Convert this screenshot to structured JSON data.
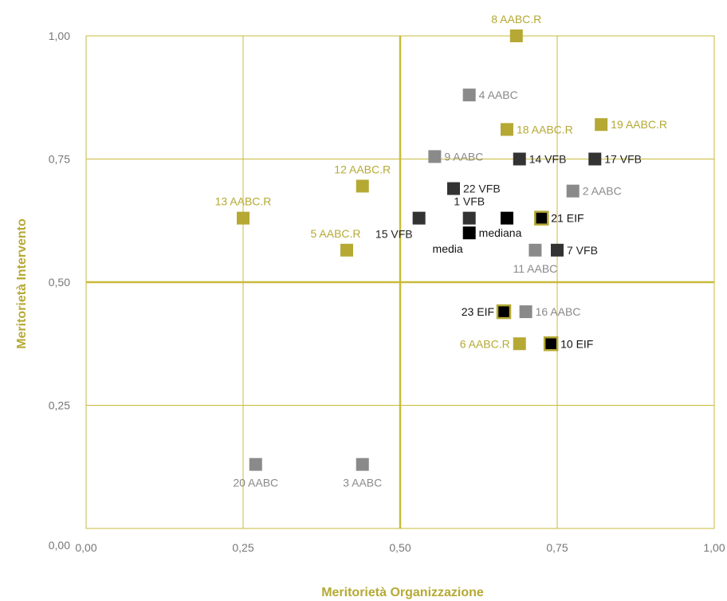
{
  "chart_data": {
    "type": "scatter",
    "xlabel": "Meritorietà Organizzazione",
    "ylabel": "Meritorietà Intervento",
    "xlim": [
      0,
      1
    ],
    "ylim": [
      0,
      1
    ],
    "x_ticks": [
      "0,00",
      "0,25",
      "0,50",
      "0,75",
      "1,00"
    ],
    "y_ticks": [
      "0,00",
      "0,25",
      "0,50",
      "0,75",
      "1,00"
    ],
    "x_tick_values": [
      0,
      0.25,
      0.5,
      0.75,
      1
    ],
    "y_tick_values": [
      0,
      0.25,
      0.5,
      0.75,
      1
    ],
    "grid": true,
    "legend": "none",
    "reference_lines": {
      "x": 0.5,
      "y": 0.5
    },
    "colors": {
      "AABC.R": "#b5a934",
      "AABC": "#8a8a8a",
      "VFB": "#333333",
      "EIF": "#000000",
      "EIF_border": "#b5a934",
      "summary": "#000000",
      "axis_title": "#b5a934",
      "grid": "#c8bb3c"
    },
    "points": [
      {
        "label": "8 AABC.R",
        "group": "AABC.R",
        "x": 0.685,
        "y": 1.0,
        "label_pos": "above"
      },
      {
        "label": "4 AABC",
        "group": "AABC",
        "x": 0.61,
        "y": 0.88,
        "label_pos": "right"
      },
      {
        "label": "19 AABC.R",
        "group": "AABC.R",
        "x": 0.82,
        "y": 0.82,
        "label_pos": "right"
      },
      {
        "label": "18 AABC.R",
        "group": "AABC.R",
        "x": 0.67,
        "y": 0.81,
        "label_pos": "right"
      },
      {
        "label": "9 AABC",
        "group": "AABC",
        "x": 0.555,
        "y": 0.755,
        "label_pos": "right"
      },
      {
        "label": "14 VFB",
        "group": "VFB",
        "x": 0.69,
        "y": 0.75,
        "label_pos": "right"
      },
      {
        "label": "17 VFB",
        "group": "VFB",
        "x": 0.81,
        "y": 0.75,
        "label_pos": "right"
      },
      {
        "label": "12 AABC.R",
        "group": "AABC.R",
        "x": 0.44,
        "y": 0.695,
        "label_pos": "above"
      },
      {
        "label": "22 VFB",
        "group": "VFB",
        "x": 0.585,
        "y": 0.69,
        "label_pos": "right"
      },
      {
        "label": "2 AABC",
        "group": "AABC",
        "x": 0.775,
        "y": 0.685,
        "label_pos": "right"
      },
      {
        "label": "13 AABC.R",
        "group": "AABC.R",
        "x": 0.25,
        "y": 0.63,
        "label_pos": "above"
      },
      {
        "label": "1 VFB",
        "group": "VFB",
        "x": 0.61,
        "y": 0.63,
        "label_pos": "above"
      },
      {
        "label": "15 VFB",
        "group": "VFB",
        "x": 0.53,
        "y": 0.63,
        "label_pos": "below-left"
      },
      {
        "label": "",
        "group": "EIF",
        "x": 0.67,
        "y": 0.63,
        "label_pos": "none"
      },
      {
        "label": "21 EIF",
        "group": "EIF",
        "x": 0.725,
        "y": 0.63,
        "label_pos": "right",
        "bordered": true
      },
      {
        "label": "mediana",
        "group": "summary",
        "x": 0.61,
        "y": 0.6,
        "label_pos": "right"
      },
      {
        "label": "media",
        "group": "summary",
        "x": 0.61,
        "y": 0.6,
        "label_pos": "below-left"
      },
      {
        "label": "5 AABC.R",
        "group": "AABC.R",
        "x": 0.415,
        "y": 0.565,
        "label_pos": "above-left"
      },
      {
        "label": "11 AABC",
        "group": "AABC",
        "x": 0.715,
        "y": 0.565,
        "label_pos": "below"
      },
      {
        "label": "7 VFB",
        "group": "VFB",
        "x": 0.75,
        "y": 0.565,
        "label_pos": "right"
      },
      {
        "label": "23 EIF",
        "group": "EIF",
        "x": 0.665,
        "y": 0.44,
        "label_pos": "left",
        "bordered": true
      },
      {
        "label": "16 AABC",
        "group": "AABC",
        "x": 0.7,
        "y": 0.44,
        "label_pos": "right"
      },
      {
        "label": "6 AABC.R",
        "group": "AABC.R",
        "x": 0.69,
        "y": 0.375,
        "label_pos": "left"
      },
      {
        "label": "10 EIF",
        "group": "EIF",
        "x": 0.74,
        "y": 0.375,
        "label_pos": "right",
        "bordered": true
      },
      {
        "label": "20 AABC",
        "group": "AABC",
        "x": 0.27,
        "y": 0.13,
        "label_pos": "below"
      },
      {
        "label": "3 AABC",
        "group": "AABC",
        "x": 0.44,
        "y": 0.13,
        "label_pos": "below"
      }
    ]
  }
}
